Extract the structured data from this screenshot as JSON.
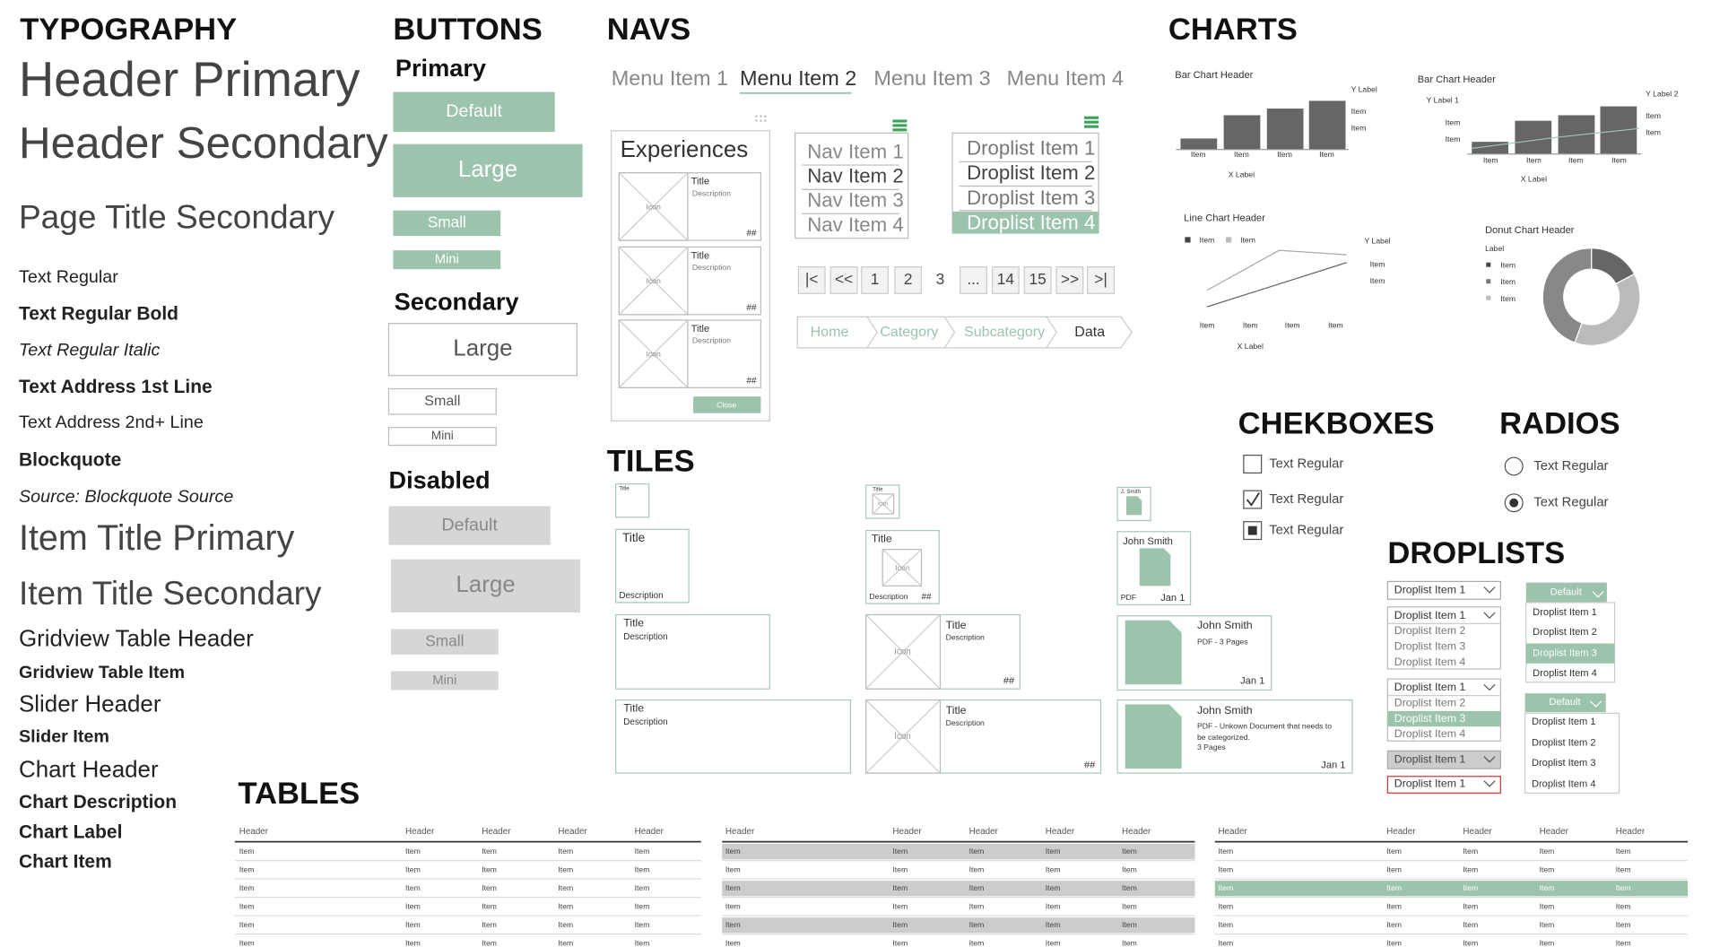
{
  "typography": {
    "title": "TYPOGRAPHY",
    "items": [
      "Header Primary",
      "Header Secondary",
      "Page Title Secondary",
      "Text Regular",
      "Text Regular Bold",
      "Text Regular Italic",
      "Text Address 1st Line",
      "Text Address 2nd+ Line",
      "Blockquote",
      "Source: Blockquote Source",
      "Item Title Primary",
      "Item Title Secondary",
      "Gridview Table Header",
      "Gridview Table Item",
      "Slider Header",
      "Slider Item",
      "Chart Header",
      "Chart Description",
      "Chart Label",
      "Chart Item"
    ]
  },
  "buttons": {
    "title": "BUTTONS",
    "primary": {
      "title": "Primary",
      "items": [
        "Default",
        "Large",
        "Small",
        "Mini"
      ]
    },
    "secondary": {
      "title": "Secondary",
      "items": [
        "Large",
        "Small",
        "Mini"
      ]
    },
    "disabled": {
      "title": "Disabled",
      "items": [
        "Default",
        "Large",
        "Small",
        "Mini"
      ]
    }
  },
  "navs": {
    "title": "NAVS",
    "menu": [
      "Menu Item 1",
      "Menu Item 2",
      "Menu Item 3",
      "Menu Item 4"
    ],
    "experiences": {
      "title": "Experiences",
      "cards": [
        {
          "icon": "Icon",
          "title": "Title",
          "description": "Description",
          "count": "##"
        },
        {
          "icon": "Icon",
          "title": "Title",
          "description": "Description",
          "count": "##"
        },
        {
          "icon": "Icon",
          "title": "Title",
          "description": "Description",
          "count": "##"
        }
      ],
      "button": "Close"
    },
    "nav_list": [
      "Nav Item 1",
      "Nav Item 2",
      "Nav Item 3",
      "Nav Item 4"
    ],
    "droplist": [
      "Droplist Item 1",
      "Droplist Item 2",
      "Droplist Item 3",
      "Droplist Item 4"
    ],
    "pagination": [
      "|<",
      "<<",
      "1",
      "2",
      "3",
      "...",
      "14",
      "15",
      ">>",
      ">|"
    ],
    "breadcrumb": [
      "Home",
      "Category",
      "Subcategory",
      "Data"
    ]
  },
  "charts": {
    "title": "CHARTS",
    "bar_chart_1": {
      "header": "Bar Chart Header",
      "y_label": "Y Label",
      "y_items": [
        "Item",
        "Item"
      ],
      "x_items": [
        "Item",
        "Item",
        "Item",
        "Item"
      ],
      "x_label": "X Label"
    },
    "bar_chart_2": {
      "header": "Bar Chart Header",
      "y_label_1": "Y Label 1",
      "y_label_2": "Y Label 2",
      "y1_items": [
        "Item",
        "Item"
      ],
      "y2_items": [
        "Item",
        "Item"
      ],
      "x_items": [
        "Item",
        "Item",
        "Item",
        "Item"
      ],
      "x_label": "X Label"
    },
    "line_chart": {
      "header": "Line Chart Header",
      "legend": [
        "Item",
        "Item"
      ],
      "y_label": "Y Label",
      "y_items": [
        "Item",
        "Item"
      ],
      "x_items": [
        "Item",
        "Item",
        "Item",
        "Item"
      ],
      "x_label": "X Label"
    },
    "donut_chart": {
      "header": "Donut Chart Header",
      "legend_title": "Label",
      "legend": [
        "Item",
        "Item",
        "Item"
      ]
    }
  },
  "checkboxes": {
    "title": "CHEKBOXES",
    "items": [
      "Text Regular",
      "Text Regular",
      "Text Regular"
    ]
  },
  "radios": {
    "title": "RADIOS",
    "items": [
      "Text Regular",
      "Text Regular"
    ]
  },
  "droplists": {
    "title": "DROPLISTS",
    "closed": "Droplist Item 1",
    "open": [
      "Droplist Item 1",
      "Droplist Item 2",
      "Droplist Item 3",
      "Droplist Item 4"
    ],
    "open_selected": [
      "Droplist Item 1",
      "Droplist Item 2",
      "Droplist Item 3",
      "Droplist Item 4"
    ],
    "disabled": "Droplist Item 1",
    "error": "Droplist Item 1",
    "button_1": "Default",
    "list_1": [
      "Droplist Item 1",
      "Droplist Item 2",
      "Droplist Item 3",
      "Droplist Item 4"
    ],
    "button_2": "Default",
    "list_2": [
      "Droplist Item 1",
      "Droplist Item 2",
      "Droplist Item 3",
      "Droplist Item 4"
    ]
  },
  "tiles": {
    "title": "TILES",
    "column_1": [
      {
        "title": "Title"
      },
      {
        "title": "Title",
        "description": "Description"
      },
      {
        "title": "Title",
        "description": "Description"
      },
      {
        "title": "Title",
        "description": "Description"
      }
    ],
    "column_2": [
      {
        "title": "Title",
        "icon": "Icon"
      },
      {
        "title": "Title",
        "icon": "Icon",
        "description": "Description",
        "count": "##"
      },
      {
        "icon": "Icon",
        "title": "Title",
        "description": "Description",
        "count": "##"
      },
      {
        "icon": "Icon",
        "title": "Title",
        "description": "Description",
        "count": "##"
      }
    ],
    "column_3": [
      {
        "name": "J. Smith"
      },
      {
        "name": "John Smith",
        "type": "PDF",
        "date": "Jan 1"
      },
      {
        "name": "John Smith",
        "details": [
          "PDF - 3 Pages"
        ],
        "date": "Jan 1"
      },
      {
        "name": "John Smith",
        "details": [
          "PDF - Unkown Document that needs to",
          "be categorized.",
          "3 Pages"
        ],
        "date": "Jan 1"
      }
    ]
  },
  "tables": {
    "title": "TABLES",
    "items": [
      {
        "header": [
          "Header",
          "Header",
          "Header",
          "Header",
          "Header"
        ],
        "rows": [
          [
            "Item",
            "Item",
            "Item",
            "Item",
            "Item"
          ],
          [
            "Item",
            "Item",
            "Item",
            "Item",
            "Item"
          ],
          [
            "Item",
            "Item",
            "Item",
            "Item",
            "Item"
          ],
          [
            "Item",
            "Item",
            "Item",
            "Item",
            "Item"
          ],
          [
            "Item",
            "Item",
            "Item",
            "Item",
            "Item"
          ],
          [
            "Item",
            "Item",
            "Item",
            "Item",
            "Item"
          ]
        ]
      },
      {
        "header": [
          "Header",
          "Header",
          "Header",
          "Header",
          "Header"
        ],
        "rows": [
          [
            "Item",
            "Item",
            "Item",
            "Item",
            "Item"
          ],
          [
            "Item",
            "Item",
            "Item",
            "Item",
            "Item"
          ],
          [
            "Item",
            "Item",
            "Item",
            "Item",
            "Item"
          ],
          [
            "Item",
            "Item",
            "Item",
            "Item",
            "Item"
          ],
          [
            "Item",
            "Item",
            "Item",
            "Item",
            "Item"
          ],
          [
            "Item",
            "Item",
            "Item",
            "Item",
            "Item"
          ]
        ]
      },
      {
        "header": [
          "Header",
          "Header",
          "Header",
          "Header",
          "Header"
        ],
        "rows": [
          [
            "Item",
            "Item",
            "Item",
            "Item",
            "Item"
          ],
          [
            "Item",
            "Item",
            "Item",
            "Item",
            "Item"
          ],
          [
            "Item",
            "Item",
            "Item",
            "Item",
            "Item"
          ],
          [
            "Item",
            "Item",
            "Item",
            "Item",
            "Item"
          ],
          [
            "Item",
            "Item",
            "Item",
            "Item",
            "Item"
          ],
          [
            "Item",
            "Item",
            "Item",
            "Item",
            "Item"
          ]
        ]
      }
    ]
  }
}
